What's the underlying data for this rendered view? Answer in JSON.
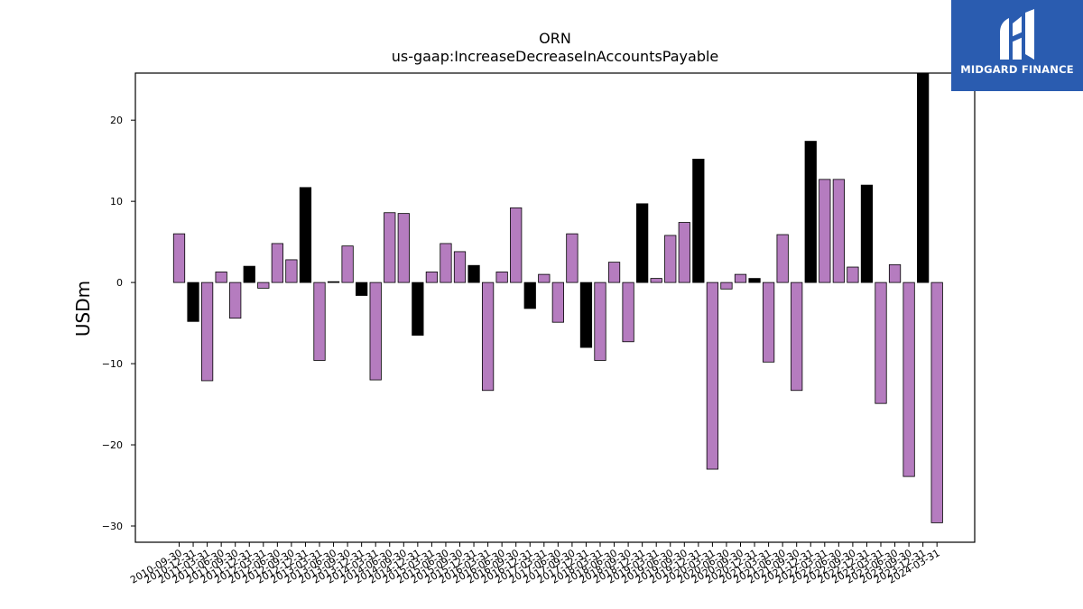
{
  "brand": {
    "name": "MIDGARD FINANCE",
    "bg_color": "#2a5cb0",
    "icon": "midgard-logo-icon"
  },
  "colors": {
    "positive_other": "#b57cbf",
    "highlight": "#000000",
    "edge": "#000000"
  },
  "chart_data": {
    "type": "bar",
    "title": "ORN",
    "subtitle": "us-gaap:IncreaseDecreaseInAccountsPayable",
    "xlabel": "",
    "ylabel": "USDm",
    "ylim": [
      -32,
      25.8
    ],
    "yticks": [
      20,
      10,
      0,
      -10,
      -20,
      -30
    ],
    "ytick_labels": [
      "20",
      "10",
      "0",
      "−10",
      "−20",
      "−30"
    ],
    "grid": false,
    "categories": [
      "2010-09-30",
      "2010-12-31",
      "2011-03-31",
      "2011-06-30",
      "2011-09-30",
      "2011-12-31",
      "2012-03-31",
      "2012-06-30",
      "2012-09-30",
      "2012-12-31",
      "2013-03-31",
      "2013-06-30",
      "2013-09-30",
      "2013-12-31",
      "2014-03-31",
      "2014-06-30",
      "2014-09-30",
      "2014-12-31",
      "2015-03-31",
      "2015-06-30",
      "2015-09-30",
      "2015-12-31",
      "2016-03-31",
      "2016-06-30",
      "2016-09-30",
      "2016-12-31",
      "2017-03-31",
      "2017-06-30",
      "2017-09-30",
      "2017-12-31",
      "2018-03-31",
      "2018-06-30",
      "2018-09-30",
      "2018-12-31",
      "2019-03-31",
      "2019-06-30",
      "2019-09-30",
      "2019-12-31",
      "2020-03-31",
      "2020-06-30",
      "2020-09-30",
      "2020-12-31",
      "2021-03-31",
      "2021-06-30",
      "2021-09-30",
      "2021-12-31",
      "2022-03-31",
      "2022-06-30",
      "2022-09-30",
      "2022-12-31",
      "2023-03-31",
      "2023-06-30",
      "2023-09-30",
      "2023-12-31",
      "2024-03-31"
    ],
    "tick_labels": [
      "2010-09-30",
      "2010-12-31",
      "2011-03-31",
      "2011-06-30",
      "2011-09-30",
      "2011-12-31",
      "2012-03-31",
      "2012-06-30",
      "2012-09-30",
      "2012-12-31",
      "2013-03-31",
      "2013-06-30",
      "2013-09-30",
      "2013-12-31",
      "2014-03-31",
      "2014-06-30",
      "2014-09-30",
      "2014-12-31",
      "2015-03-31",
      "2015-06-30",
      "2015-09-30",
      "2015-12-31",
      "2016-03-31",
      "2016-06-30",
      "2016-09-30",
      "2016-12-31",
      "2017-03-31",
      "2017-06-30",
      "2017-09-30",
      "2017-12-31",
      "2018-03-31",
      "2018-06-30",
      "2018-09-30",
      "2018-12-31",
      "2019-03-31",
      "2019-06-30",
      "2019-09-30",
      "2019-12-31",
      "2020-03-31",
      "2020-06-30",
      "2020-09-30",
      "2020-12-31",
      "2021-03-31",
      "2021-06-30",
      "2021-09-30",
      "2021-12-31",
      "2022-03-31",
      "2022-06-30",
      "2022-09-30",
      "2022-12-31",
      "2023-03-31",
      "2023-06-30",
      "2023-09-30",
      "2023-12-31",
      "2024-03-31"
    ],
    "values": [
      6.0,
      -4.8,
      -12.1,
      1.3,
      -4.4,
      2.0,
      -0.7,
      4.8,
      2.8,
      11.7,
      -9.6,
      0.1,
      4.5,
      -1.6,
      -12.0,
      8.6,
      8.5,
      -6.5,
      1.3,
      4.8,
      3.8,
      2.1,
      -13.3,
      1.3,
      9.2,
      -3.2,
      1.0,
      -4.9,
      6.0,
      -8.0,
      -9.6,
      2.5,
      -7.3,
      9.7,
      0.5,
      5.8,
      7.4,
      15.2,
      -23.0,
      -0.8,
      1.0,
      0.5,
      -9.8,
      5.9,
      -13.3,
      17.4,
      12.7,
      12.7,
      1.9,
      12.0,
      -14.9,
      2.2,
      -23.9,
      25.8,
      -29.6
    ],
    "highlight": [
      false,
      true,
      false,
      false,
      false,
      true,
      false,
      false,
      false,
      true,
      false,
      true,
      false,
      true,
      false,
      false,
      false,
      true,
      false,
      false,
      false,
      true,
      false,
      false,
      false,
      true,
      false,
      false,
      false,
      true,
      false,
      false,
      false,
      true,
      false,
      false,
      false,
      true,
      false,
      false,
      false,
      true,
      false,
      false,
      false,
      true,
      false,
      false,
      false,
      true,
      false,
      false,
      false,
      true,
      false
    ]
  }
}
